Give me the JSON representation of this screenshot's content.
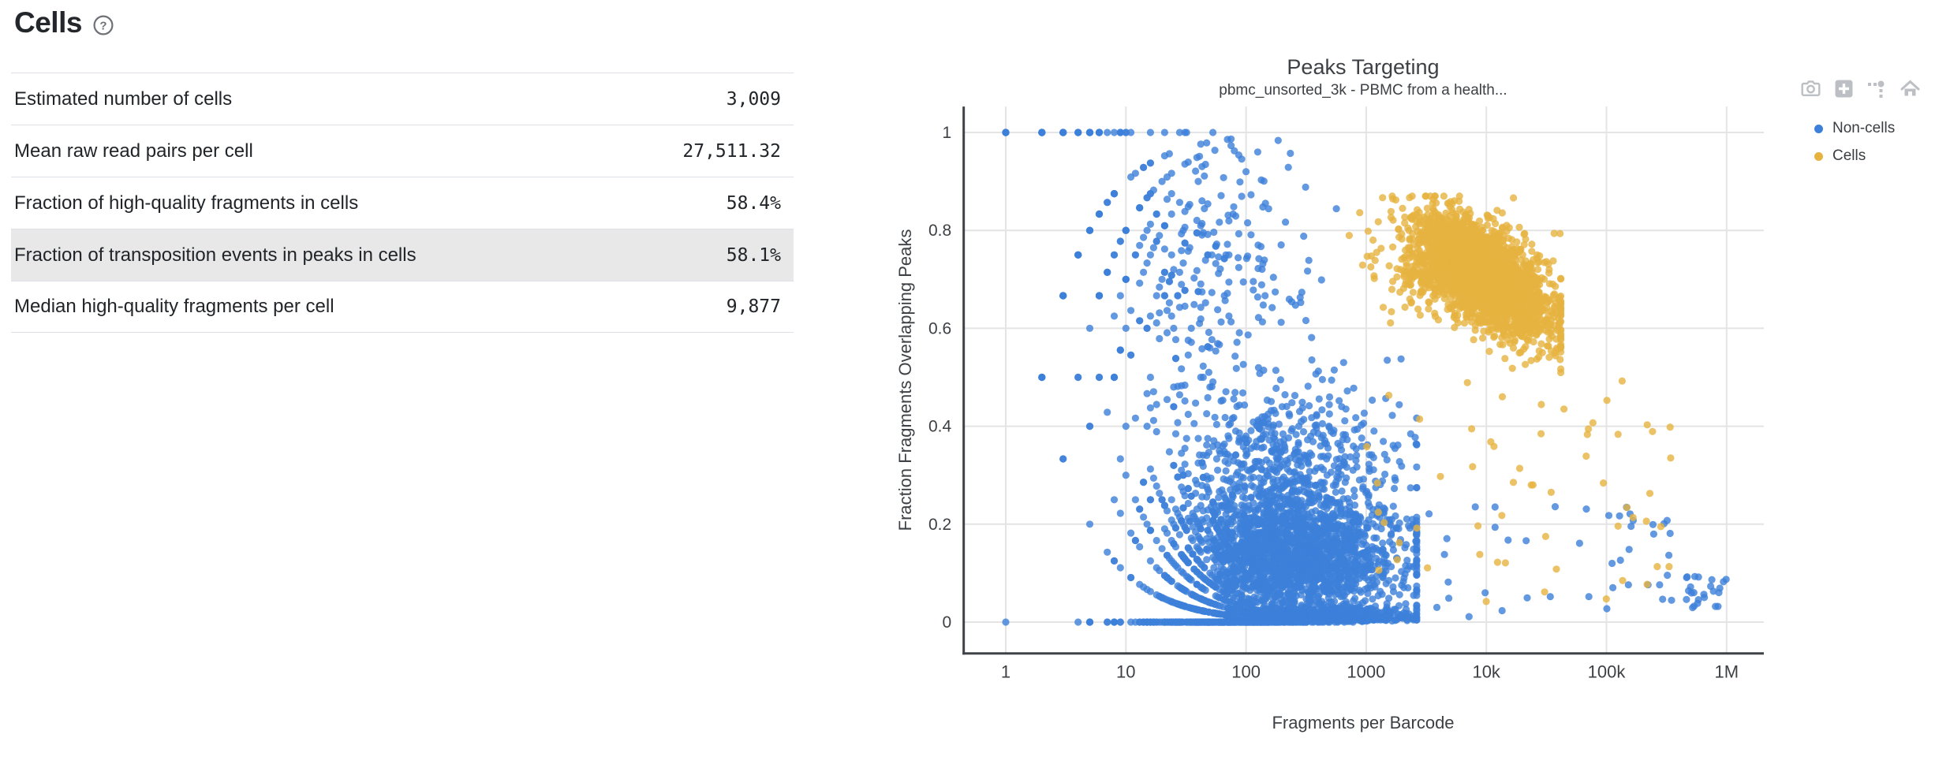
{
  "header": {
    "title": "Cells"
  },
  "metrics_table": {
    "rows": [
      {
        "label": "Estimated number of cells",
        "value": "3,009",
        "highlighted": false
      },
      {
        "label": "Mean raw read pairs per cell",
        "value": "27,511.32",
        "highlighted": false
      },
      {
        "label": "Fraction of high-quality fragments in cells",
        "value": "58.4%",
        "highlighted": false
      },
      {
        "label": "Fraction of transposition events in peaks in cells",
        "value": "58.1%",
        "highlighted": true
      },
      {
        "label": "Median high-quality fragments per cell",
        "value": "9,877",
        "highlighted": false
      }
    ]
  },
  "chart": {
    "modebar": [
      "camera-icon",
      "zoom-in-icon",
      "toggle-spikelines-icon",
      "home-icon"
    ],
    "modebar_color": "#bcc0c4"
  },
  "chart_data": {
    "type": "scatter",
    "title": "Peaks Targeting",
    "subtitle": "pbmc_unsorted_3k - PBMC from a health...",
    "xlabel": "Fragments per Barcode",
    "ylabel": "Fraction Fragments Overlapping Peaks",
    "x_scale": "log",
    "x_ticks": {
      "values": [
        1,
        10,
        100,
        1000,
        10000,
        100000,
        1000000
      ],
      "labels": [
        "1",
        "10",
        "100",
        "1000",
        "10k",
        "100k",
        "1M"
      ]
    },
    "y_ticks": {
      "values": [
        0,
        0.2,
        0.4,
        0.6,
        0.8,
        1
      ],
      "labels": [
        "0",
        "0.2",
        "0.4",
        "0.6",
        "0.8",
        "1"
      ]
    },
    "x_log_range": [
      -0.36,
      6.31
    ],
    "y_range": [
      -0.064,
      1.053
    ],
    "grid": true,
    "grid_color": "#e4e4e4",
    "axis_color": "#3f4347",
    "tick_color": "#3d4145",
    "legend_position": "top-right",
    "legend": [
      {
        "name": "Non-cells",
        "color": "#3c80da"
      },
      {
        "name": "Cells",
        "color": "#e6b340"
      }
    ],
    "marker": {
      "radius_px": 4.6,
      "opacity": 0.8
    },
    "series": [
      {
        "name": "Non-cells",
        "color": "#3c80da",
        "seed": 101,
        "kind": "binomial_fraction",
        "count": 4300,
        "log_n": {
          "mean": 2.32,
          "sd": 0.5,
          "min": 0,
          "max": 3.42
        },
        "p_mixture": [
          {
            "w": 0.27,
            "type": "lowtail",
            "base": 0.004,
            "scale": 0.022
          },
          {
            "w": 0.47,
            "type": "normal",
            "mean": 0.13,
            "sd": 0.06,
            "min": 0.01,
            "max": 0.5
          },
          {
            "w": 0.17,
            "type": "normal",
            "mean": 0.3,
            "sd": 0.1,
            "min": 0.02,
            "max": 0.72
          },
          {
            "w": 0.09,
            "type": "normal",
            "mean": 0.74,
            "sd": 0.13,
            "min": 0.3,
            "max": 0.98,
            "log_n_override": {
              "mean": 1.35,
              "sd": 0.55,
              "min": 0,
              "max": 3.2
            }
          }
        ]
      },
      {
        "name": "Non-cells",
        "color": "#3c80da",
        "seed": 202,
        "kind": "uniform_cloud",
        "count": 24,
        "log_x": [
          5.62,
          6.02
        ],
        "y": [
          0.025,
          0.095
        ]
      },
      {
        "name": "Non-cells",
        "color": "#3c80da",
        "seed": 203,
        "kind": "uniform_cloud",
        "count": 46,
        "log_x": [
          3.35,
          5.55
        ],
        "y": [
          0.01,
          0.24
        ]
      },
      {
        "name": "Cells",
        "color": "#e6b340",
        "seed": 301,
        "kind": "cells_blob",
        "count": 2760,
        "log_x": {
          "mean": 3.95,
          "sd": 0.3,
          "min": 2.5,
          "max": 4.62
        },
        "trend": {
          "flat_until": 3.6,
          "base": 0.755,
          "slope": -0.13
        },
        "noise_sd": 0.05,
        "wide_noise_below": 3.4,
        "wide_noise_sd": 0.065,
        "y_min": 0.32,
        "y_max": 0.87
      },
      {
        "name": "Cells",
        "color": "#e6b340",
        "seed": 302,
        "kind": "uniform_cloud",
        "count": 58,
        "log_x": [
          3.0,
          5.55
        ],
        "y": [
          0.04,
          0.5
        ]
      }
    ]
  }
}
